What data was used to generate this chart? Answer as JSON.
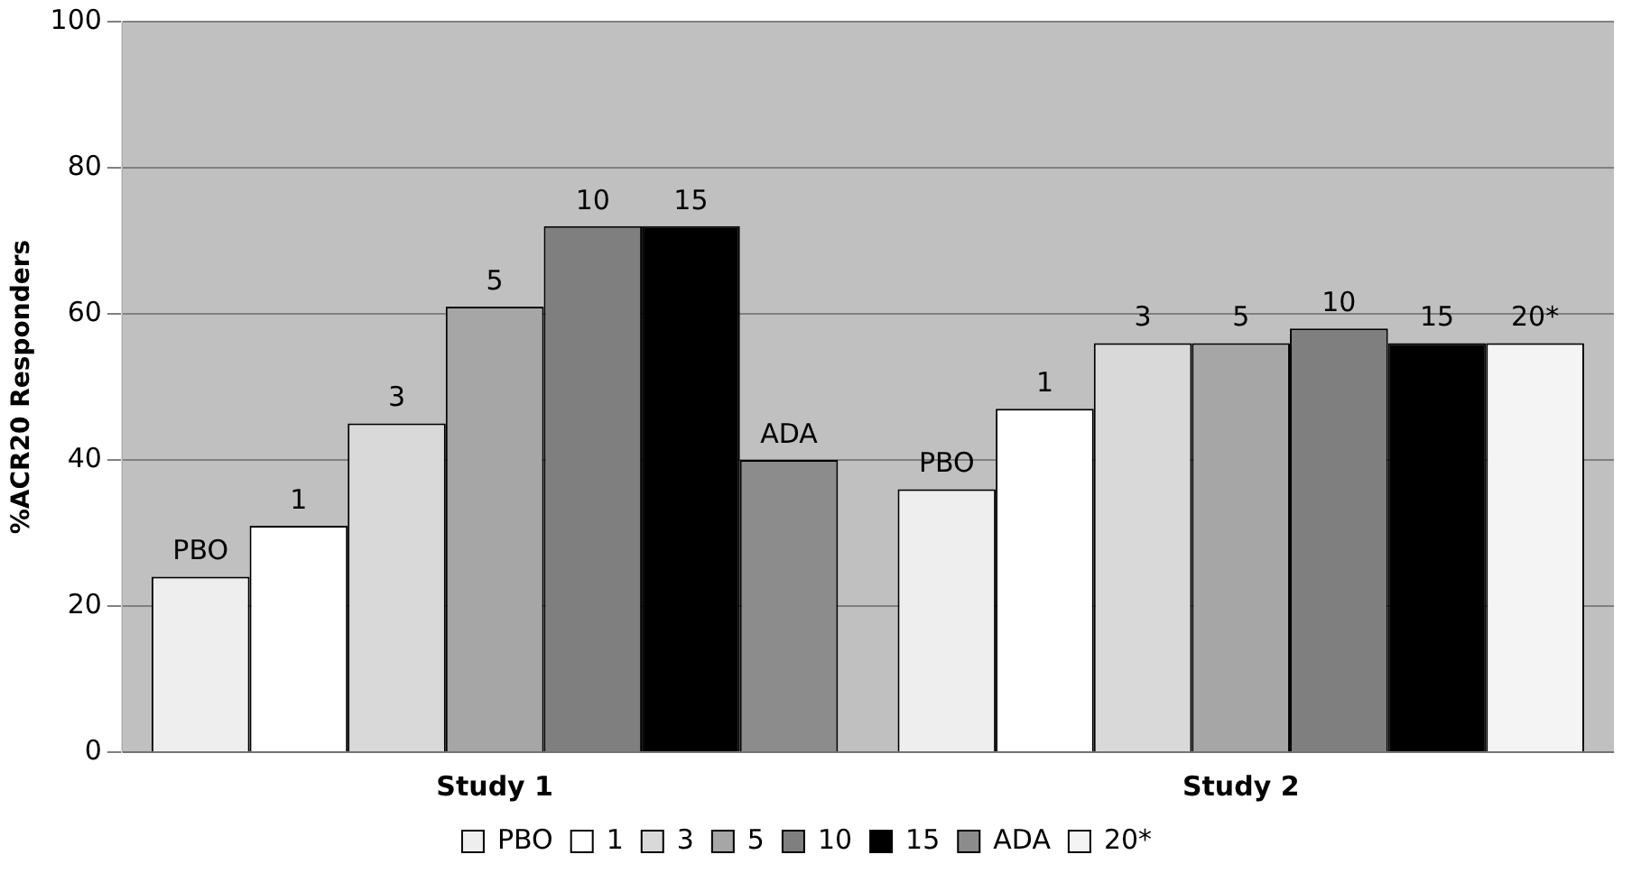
{
  "chart_data": {
    "type": "bar",
    "ylabel": "%ACR20 Responders",
    "categories": [
      "Study 1",
      "Study 2"
    ],
    "series": [
      {
        "name": "PBO",
        "color": "#eeeeee",
        "values": [
          24,
          36
        ]
      },
      {
        "name": "1",
        "color": "#ffffff",
        "values": [
          31,
          47
        ]
      },
      {
        "name": "3",
        "color": "#d9d9d9",
        "values": [
          45,
          56
        ]
      },
      {
        "name": "5",
        "color": "#a6a6a6",
        "values": [
          61,
          56
        ]
      },
      {
        "name": "10",
        "color": "#7f7f7f",
        "values": [
          72,
          58
        ]
      },
      {
        "name": "15",
        "color": "#000000",
        "values": [
          72,
          56
        ]
      },
      {
        "name": "ADA",
        "color": "#8c8c8c",
        "values": [
          40,
          null
        ]
      },
      {
        "name": "20*",
        "color": "#f4f4f4",
        "values": [
          null,
          56
        ]
      }
    ],
    "ylim": [
      0,
      100
    ],
    "yticks": [
      0,
      20,
      40,
      60,
      80,
      100
    ],
    "grid": "y",
    "legend": "bottom"
  }
}
